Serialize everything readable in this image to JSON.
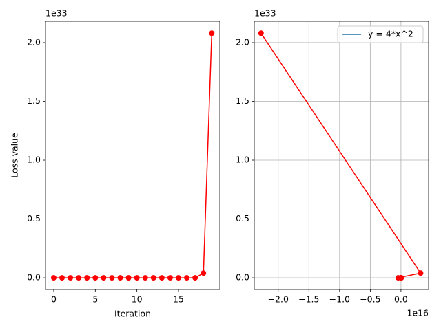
{
  "chart_data": [
    {
      "type": "line",
      "xlabel": "Iteration",
      "ylabel": "Loss value",
      "y_offset_label": "1e33",
      "x": [
        0,
        1,
        2,
        3,
        4,
        5,
        6,
        7,
        8,
        9,
        10,
        11,
        12,
        13,
        14,
        15,
        16,
        17,
        18,
        19
      ],
      "series": [
        {
          "color": "#ff0000",
          "values": [
            0,
            0,
            0,
            0,
            0,
            0,
            0,
            0,
            0,
            0,
            0,
            0,
            0,
            0,
            0,
            0,
            0,
            0,
            0.04,
            2.08
          ]
        }
      ],
      "xlim": [
        -0.99,
        19.97
      ],
      "xticks": [
        0,
        5,
        10,
        15
      ],
      "ylim": [
        -0.099,
        2.181
      ],
      "yticks": [
        {
          "value": 0,
          "label": "0.0"
        },
        {
          "value": 0.5,
          "label": "0.5"
        },
        {
          "value": 1,
          "label": "1.0"
        },
        {
          "value": 1.5,
          "label": "1.5"
        },
        {
          "value": 2,
          "label": "2.0"
        }
      ],
      "grid": false
    },
    {
      "type": "line",
      "y_offset_label": "1e33",
      "x_offset_label": "1e16",
      "x": [
        0,
        0,
        0,
        0,
        0,
        0,
        0,
        0,
        0,
        0,
        0,
        0,
        0,
        0,
        0,
        -0.001,
        0.006,
        -0.045,
        0.32,
        -2.28
      ],
      "series": [
        {
          "color": "#ff0000",
          "values": [
            0,
            0,
            0,
            0,
            0,
            0,
            0,
            0,
            0,
            0,
            0,
            0,
            0,
            0,
            0,
            0,
            0,
            0,
            0.04,
            2.08
          ]
        }
      ],
      "legend": {
        "label": "y = 4*x^2",
        "color": "#1f77b4",
        "loc": "upper right"
      },
      "xlim": [
        -2.39,
        0.45
      ],
      "xticks": [
        {
          "value": -2,
          "label": "−2.0"
        },
        {
          "value": -1.5,
          "label": "−1.5"
        },
        {
          "value": -1,
          "label": "−1.0"
        },
        {
          "value": -0.5,
          "label": "−0.5"
        },
        {
          "value": 0,
          "label": "0.0"
        }
      ],
      "ylim": [
        -0.099,
        2.181
      ],
      "yticks": [
        {
          "value": 0,
          "label": "0.0"
        },
        {
          "value": 0.5,
          "label": "0.5"
        },
        {
          "value": 1,
          "label": "1.0"
        },
        {
          "value": 1.5,
          "label": "1.5"
        },
        {
          "value": 2,
          "label": "2.0"
        }
      ],
      "grid": true
    }
  ]
}
